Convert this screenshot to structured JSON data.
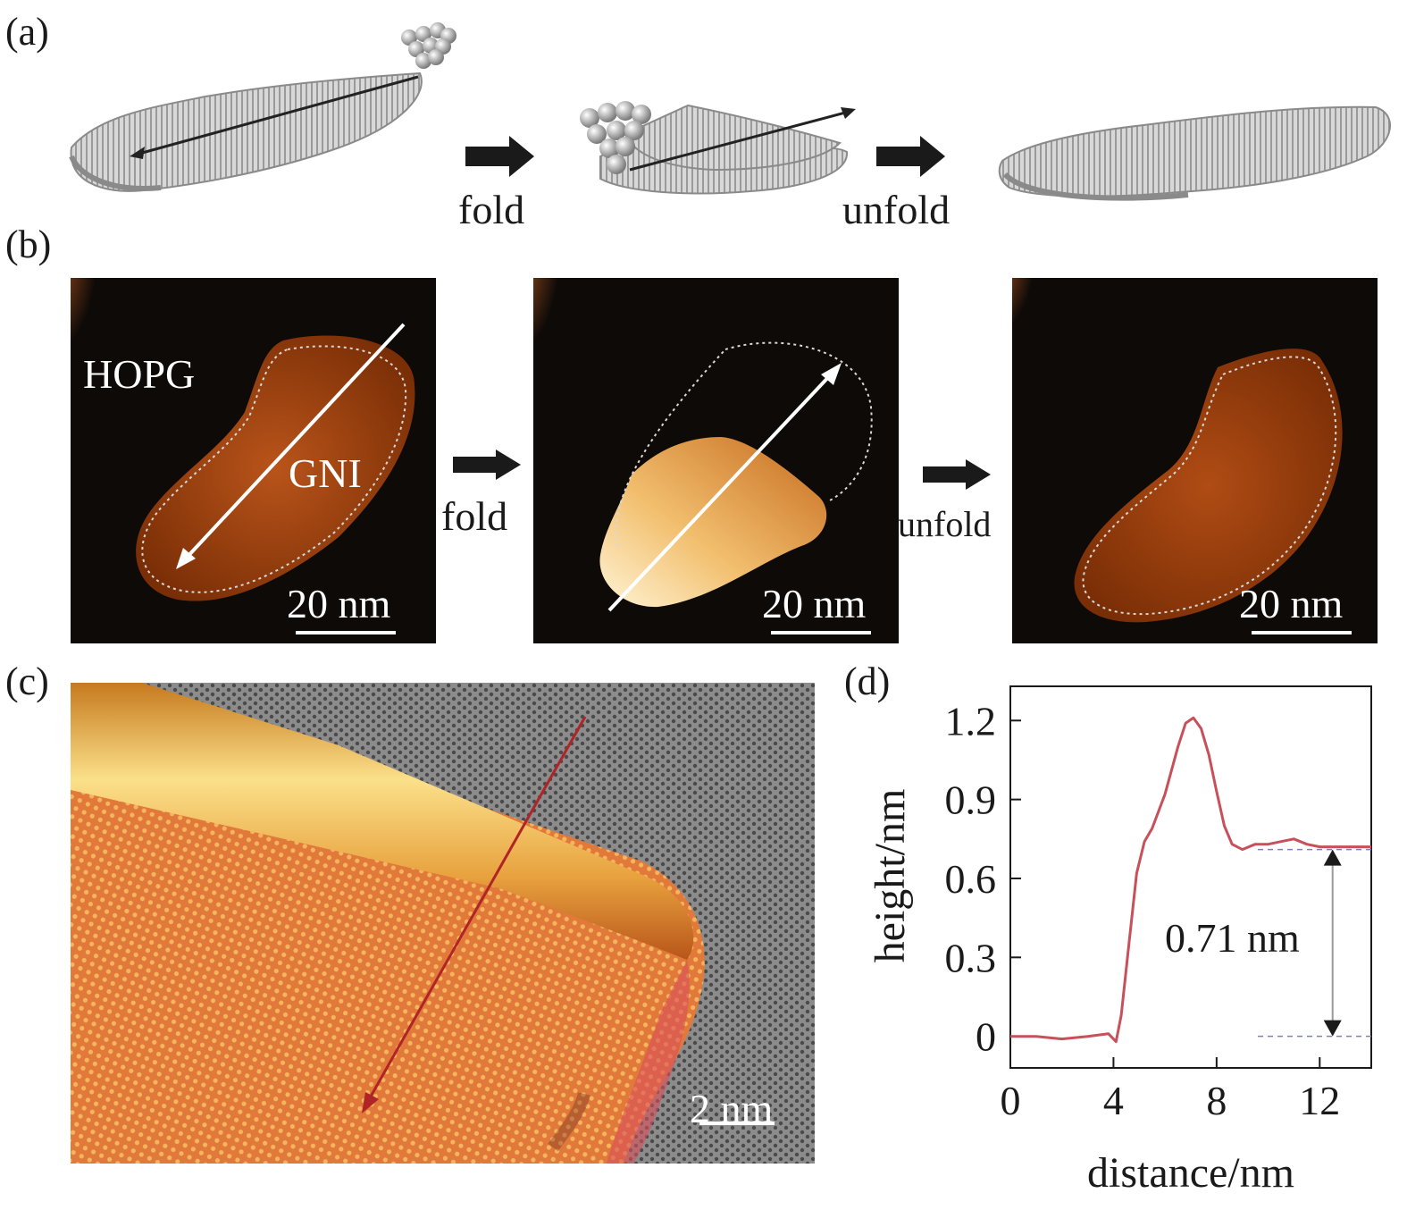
{
  "panels": {
    "a": {
      "label": "(a)",
      "fold_label": "fold",
      "unfold_label": "unfold"
    },
    "b": {
      "label": "(b)",
      "substrate_label": "HOPG",
      "sheet_label": "GNI",
      "fold_label": "fold",
      "unfold_label": "unfold",
      "scale_bar": "20 nm"
    },
    "c": {
      "label": "(c)",
      "scale_bar": "2 nm"
    },
    "d": {
      "label": "(d)",
      "annotation": "0.71 nm"
    }
  },
  "colors": {
    "profile_line": "#c8505a",
    "stm_background": "#0e0a08",
    "stm_flake": "#a8470f",
    "arrow": "#1a1a1a"
  },
  "chart_data": {
    "type": "line",
    "title": "",
    "xlabel": "distance/nm",
    "ylabel": "height/nm",
    "xlim": [
      0,
      14
    ],
    "ylim": [
      -0.12,
      1.33
    ],
    "xticks": [
      0,
      4,
      8,
      12
    ],
    "yticks": [
      0,
      0.3,
      0.6,
      0.9,
      1.2
    ],
    "ytick_labels": [
      "0",
      "0.3",
      "0.6",
      "0.9",
      "1.2"
    ],
    "grid": false,
    "series": [
      {
        "x": [
          0,
          1,
          2,
          3,
          3.8,
          4.1,
          4.3,
          4.6,
          4.9,
          5.2,
          5.5,
          6.0,
          6.5,
          6.8,
          7.1,
          7.4,
          7.7,
          8.0,
          8.3,
          8.6,
          9.0,
          9.5,
          10.0,
          10.5,
          11.0,
          11.5,
          12.0,
          12.5,
          13.0,
          13.5,
          14.0
        ],
        "y": [
          0,
          0,
          -0.01,
          0,
          0.01,
          -0.02,
          0.08,
          0.35,
          0.62,
          0.74,
          0.79,
          0.92,
          1.1,
          1.19,
          1.21,
          1.17,
          1.07,
          0.93,
          0.8,
          0.73,
          0.71,
          0.73,
          0.73,
          0.74,
          0.75,
          0.73,
          0.72,
          0.72,
          0.72,
          0.72,
          0.72
        ]
      }
    ],
    "annotations": [
      {
        "text": "0.71 nm",
        "from_y": 0,
        "to_y": 0.71,
        "x": 12.5
      }
    ]
  }
}
